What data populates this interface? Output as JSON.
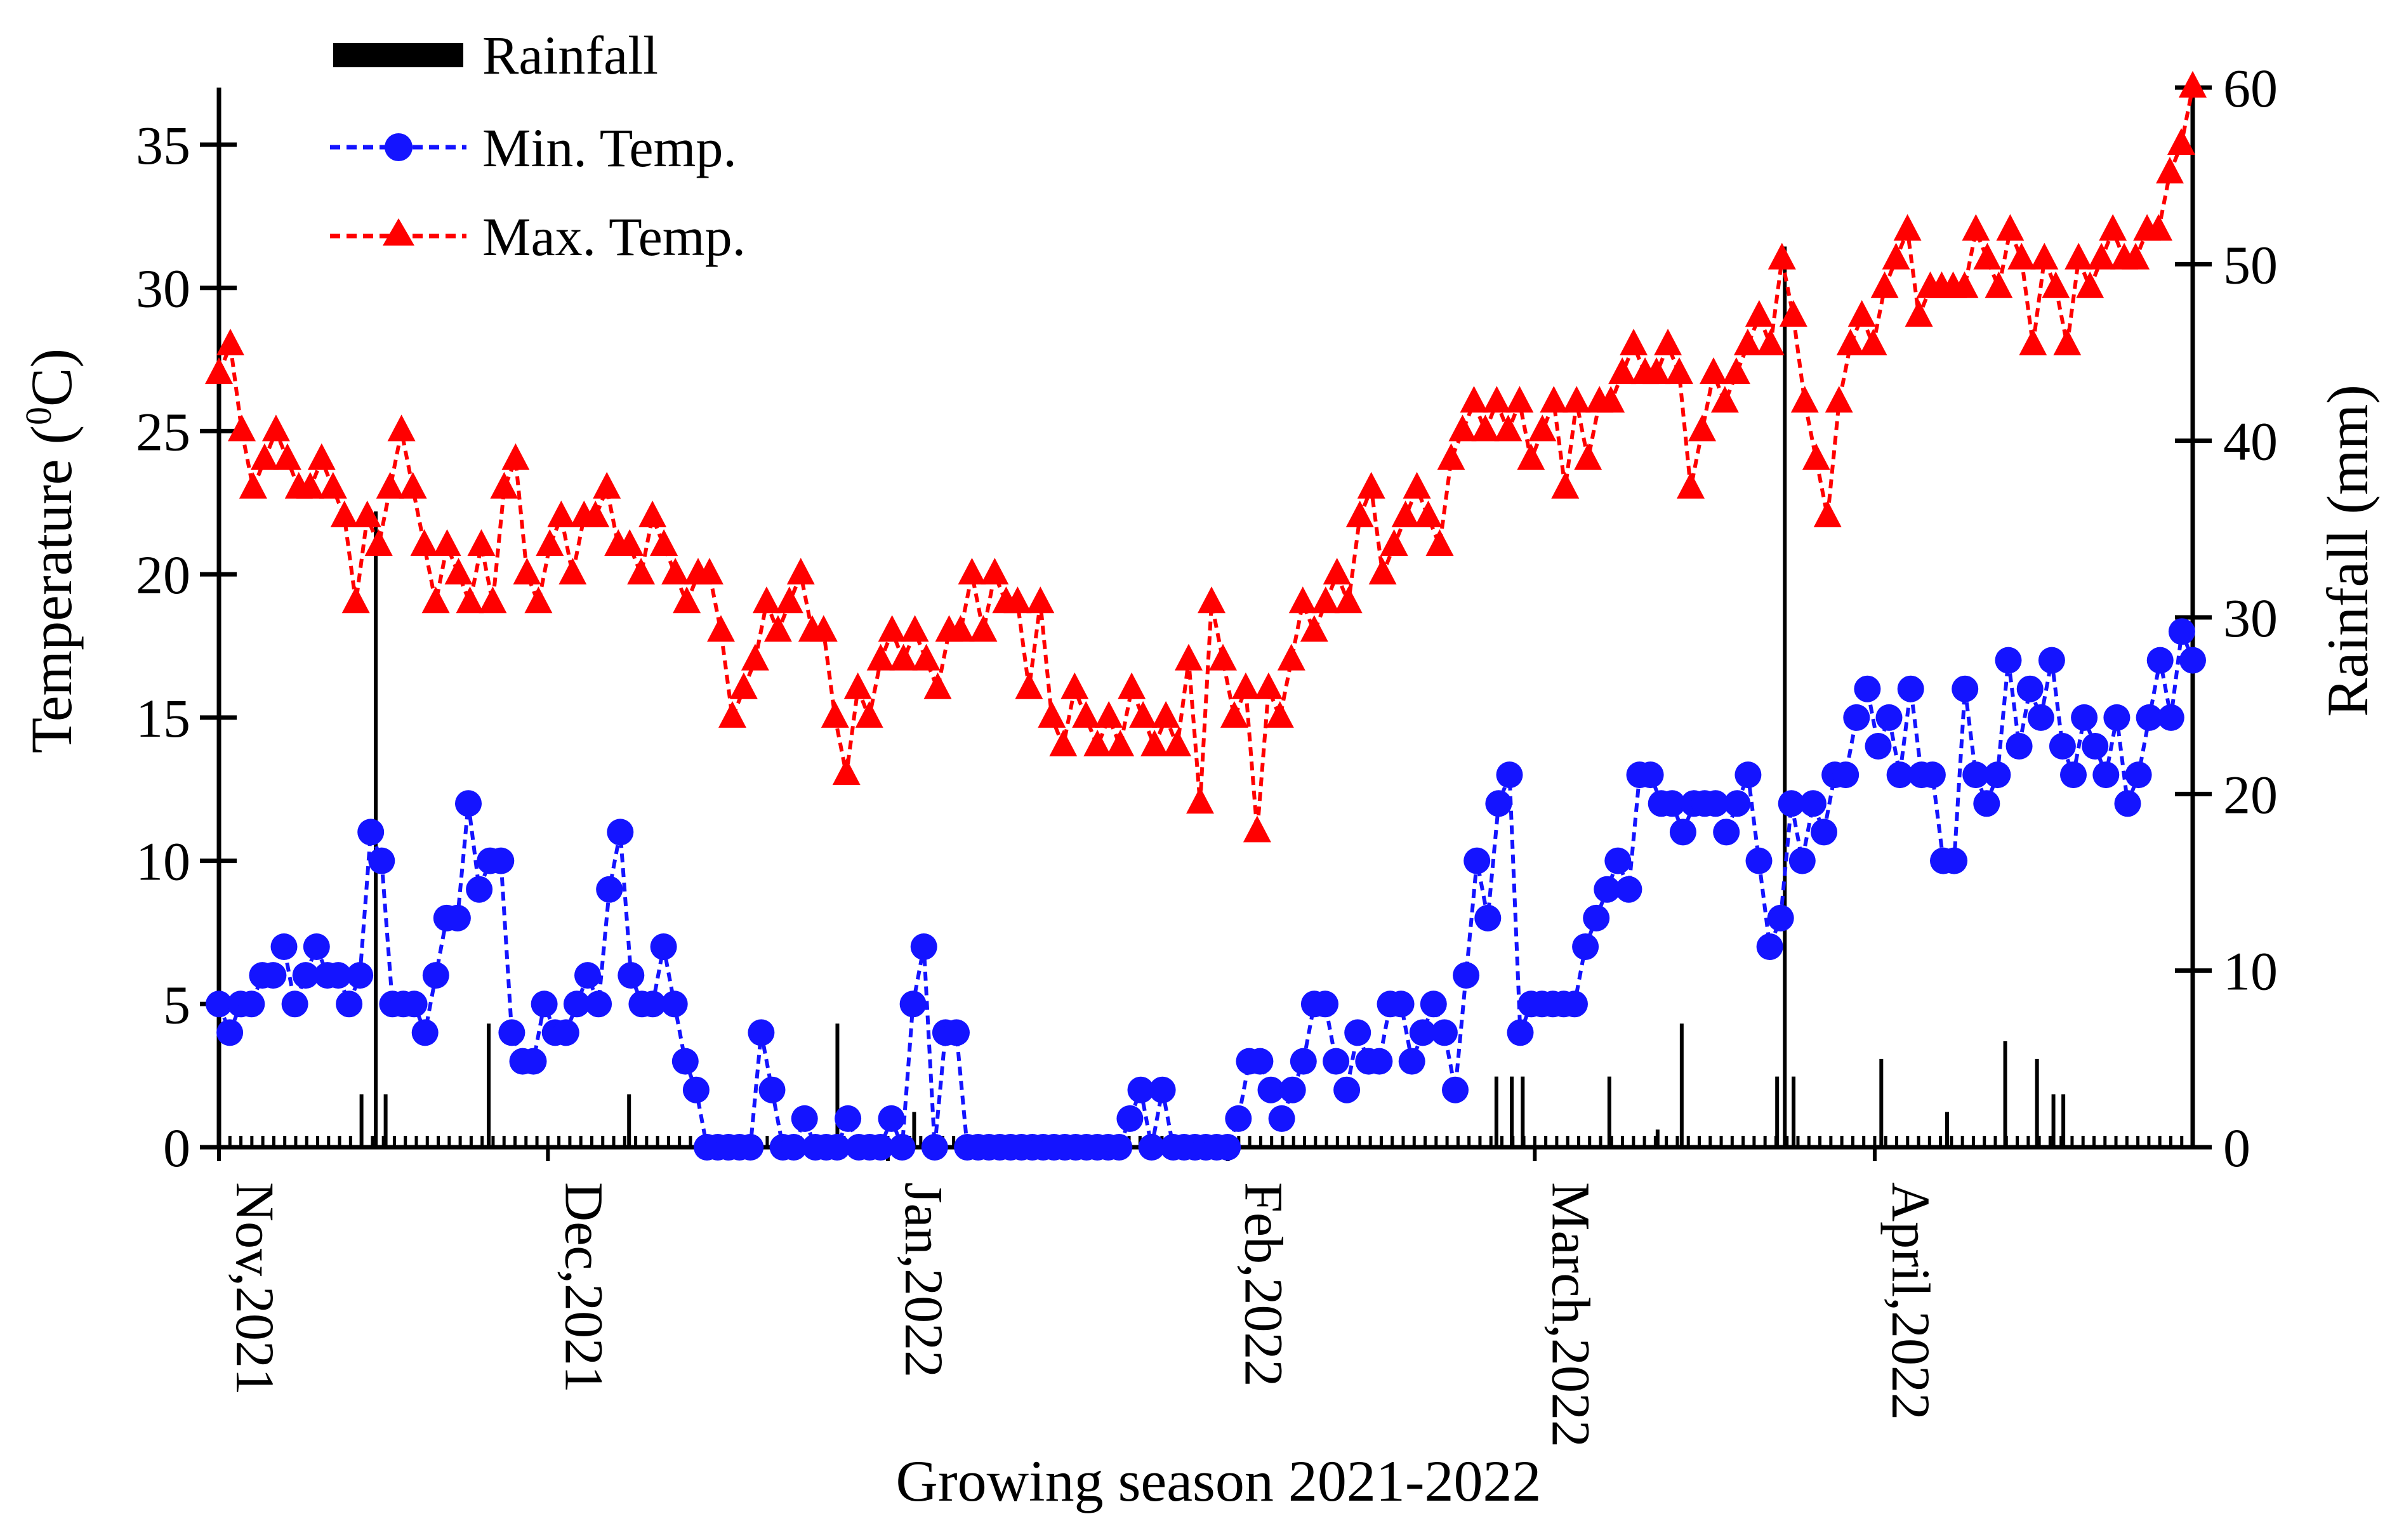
{
  "chart_data": {
    "type": "line",
    "title": "",
    "xlabel": "Growing season 2021-2022",
    "ylabel_left": "Temperature (°C)",
    "ylabel_left_prefix": "Temperature (",
    "ylabel_left_sup": "0",
    "ylabel_left_suffix": "C)",
    "ylabel_right": "Rainfall (mm)",
    "ylim_left": [
      0,
      37
    ],
    "ylim_right": [
      0,
      60
    ],
    "yticks_left": [
      0,
      5,
      10,
      15,
      20,
      25,
      30,
      35
    ],
    "yticks_right": [
      0,
      10,
      20,
      30,
      40,
      50,
      60
    ],
    "x_day_range": [
      0,
      180
    ],
    "month_labels": [
      {
        "day": 0,
        "label": "Nov,2021"
      },
      {
        "day": 30,
        "label": "Dec,2021"
      },
      {
        "day": 61,
        "label": "Jan,2022"
      },
      {
        "day": 92,
        "label": "Feb,2022"
      },
      {
        "day": 120,
        "label": "March,2022"
      },
      {
        "day": 151,
        "label": "April,2022"
      }
    ],
    "legend": {
      "placement": "top-left",
      "rainfall": "Rainfall",
      "min": "Min. Temp.",
      "max": "Max. Temp."
    },
    "colors": {
      "rainfall": "#000000",
      "min": "#1414ff",
      "max": "#ff0000"
    },
    "series": [
      {
        "name": "Max. Temp.",
        "values": [
          27,
          28,
          25,
          23,
          24,
          25,
          24,
          23,
          23,
          24,
          23,
          22,
          19,
          22,
          21,
          23,
          25,
          23,
          21,
          19,
          21,
          20,
          19,
          21,
          19,
          23,
          24,
          20,
          19,
          21,
          22,
          20,
          22,
          22,
          23,
          21,
          21,
          20,
          22,
          21,
          20,
          19,
          20,
          20,
          18,
          15,
          16,
          17,
          19,
          18,
          19,
          20,
          18,
          18,
          15,
          13,
          16,
          15,
          17,
          18,
          17,
          18,
          17,
          16,
          18,
          18,
          20,
          18,
          20,
          19,
          19,
          16,
          19,
          15,
          14,
          16,
          15,
          14,
          15,
          14,
          16,
          15,
          14,
          15,
          14,
          17,
          12,
          19,
          17,
          15,
          16,
          11,
          16,
          15,
          17,
          19,
          18,
          19,
          20,
          19,
          22,
          23,
          20,
          21,
          22,
          23,
          22,
          21,
          24,
          25,
          26,
          25,
          26,
          25,
          26,
          24,
          25,
          26,
          23,
          26,
          24,
          26,
          26,
          27,
          28,
          27,
          27,
          28,
          27,
          23,
          25,
          27,
          26,
          27,
          28,
          29,
          28,
          31,
          29,
          26,
          24,
          22,
          26,
          28,
          29,
          28,
          30,
          31,
          32,
          29,
          30,
          30,
          30,
          30,
          32,
          31,
          30,
          32,
          31,
          28,
          31,
          30,
          28,
          31,
          30,
          31,
          32,
          31,
          31,
          32,
          32,
          34,
          35,
          37
        ],
        "marker": "triangle"
      },
      {
        "name": "Min. Temp.",
        "values": [
          5,
          4,
          5,
          5,
          6,
          6,
          7,
          5,
          6,
          7,
          6,
          6,
          5,
          6,
          11,
          10,
          5,
          5,
          5,
          4,
          6,
          8,
          8,
          12,
          9,
          10,
          10,
          4,
          3,
          3,
          5,
          4,
          4,
          5,
          6,
          5,
          9,
          11,
          6,
          5,
          5,
          7,
          5,
          3,
          2,
          0,
          0,
          0,
          0,
          0,
          4,
          2,
          0,
          0,
          1,
          0,
          0,
          0,
          1,
          0,
          0,
          0,
          1,
          0,
          5,
          7,
          0,
          4,
          4,
          0,
          0,
          0,
          0,
          0,
          0,
          0,
          0,
          0,
          0,
          0,
          0,
          0,
          0,
          0,
          1,
          2,
          0,
          2,
          0,
          0,
          0,
          0,
          0,
          0,
          1,
          3,
          3,
          2,
          1,
          2,
          3,
          5,
          5,
          3,
          2,
          4,
          3,
          3,
          5,
          5,
          3,
          4,
          5,
          4,
          2,
          6,
          10,
          8,
          12,
          13,
          4,
          5,
          5,
          5,
          5,
          5,
          7,
          8,
          9,
          10,
          9,
          13,
          13,
          12,
          12,
          11,
          12,
          12,
          12,
          11,
          12,
          13,
          10,
          7,
          8,
          12,
          10,
          12,
          11,
          13,
          13,
          15,
          16,
          14,
          15,
          13,
          16,
          13,
          13,
          10,
          10,
          16,
          13,
          12,
          13,
          17,
          14,
          16,
          15,
          17,
          14,
          13,
          15,
          14,
          13,
          15,
          12,
          13,
          15,
          17,
          15,
          18,
          17
        ],
        "marker": "circle"
      }
    ],
    "rainfall": [
      {
        "day": 13,
        "mm": 3
      },
      {
        "day": 14.3,
        "mm": 36
      },
      {
        "day": 15.2,
        "mm": 3
      },
      {
        "day": 24.6,
        "mm": 7
      },
      {
        "day": 37.4,
        "mm": 3
      },
      {
        "day": 56.4,
        "mm": 7
      },
      {
        "day": 63.4,
        "mm": 2
      },
      {
        "day": 116.5,
        "mm": 4
      },
      {
        "day": 117.9,
        "mm": 4
      },
      {
        "day": 118.9,
        "mm": 4
      },
      {
        "day": 126.8,
        "mm": 4
      },
      {
        "day": 131.2,
        "mm": 1
      },
      {
        "day": 133.4,
        "mm": 7
      },
      {
        "day": 142.1,
        "mm": 4
      },
      {
        "day": 142.8,
        "mm": 51
      },
      {
        "day": 143.6,
        "mm": 4
      },
      {
        "day": 151.6,
        "mm": 5
      },
      {
        "day": 157.6,
        "mm": 2
      },
      {
        "day": 162.9,
        "mm": 6
      },
      {
        "day": 165.8,
        "mm": 5
      },
      {
        "day": 167.3,
        "mm": 3
      },
      {
        "day": 168.2,
        "mm": 3
      }
    ]
  }
}
